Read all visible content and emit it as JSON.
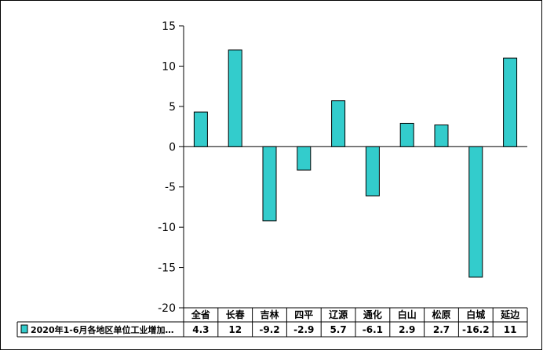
{
  "chart_data": {
    "type": "bar",
    "categories": [
      "全省",
      "长春",
      "吉林",
      "四平",
      "辽源",
      "通化",
      "白山",
      "松原",
      "白城",
      "延边"
    ],
    "series": [
      {
        "name": "2020年1-6月各地区单位工业增加…",
        "values": [
          4.3,
          12,
          -9.2,
          -2.9,
          5.7,
          -6.1,
          2.9,
          2.7,
          -16.2,
          11
        ],
        "value_labels": [
          "4.3",
          "12",
          "-9.2",
          "-2.9",
          "5.7",
          "-6.1",
          "2.9",
          "2.7",
          "-16.2",
          "11"
        ]
      }
    ],
    "y_ticks": [
      15,
      10,
      5,
      0,
      -5,
      -10,
      -15,
      -20
    ],
    "y_tick_labels": [
      "15",
      "10",
      "5",
      "0",
      "-5",
      "-10",
      "-15",
      "-20"
    ],
    "ylim": [
      -20,
      15
    ],
    "grid": false,
    "legend_position": "bottom-left, in data table",
    "data_table": true,
    "bar_color": "#33cccc",
    "bar_stroke": "#000000",
    "legend_key_color": "#33cccc"
  }
}
